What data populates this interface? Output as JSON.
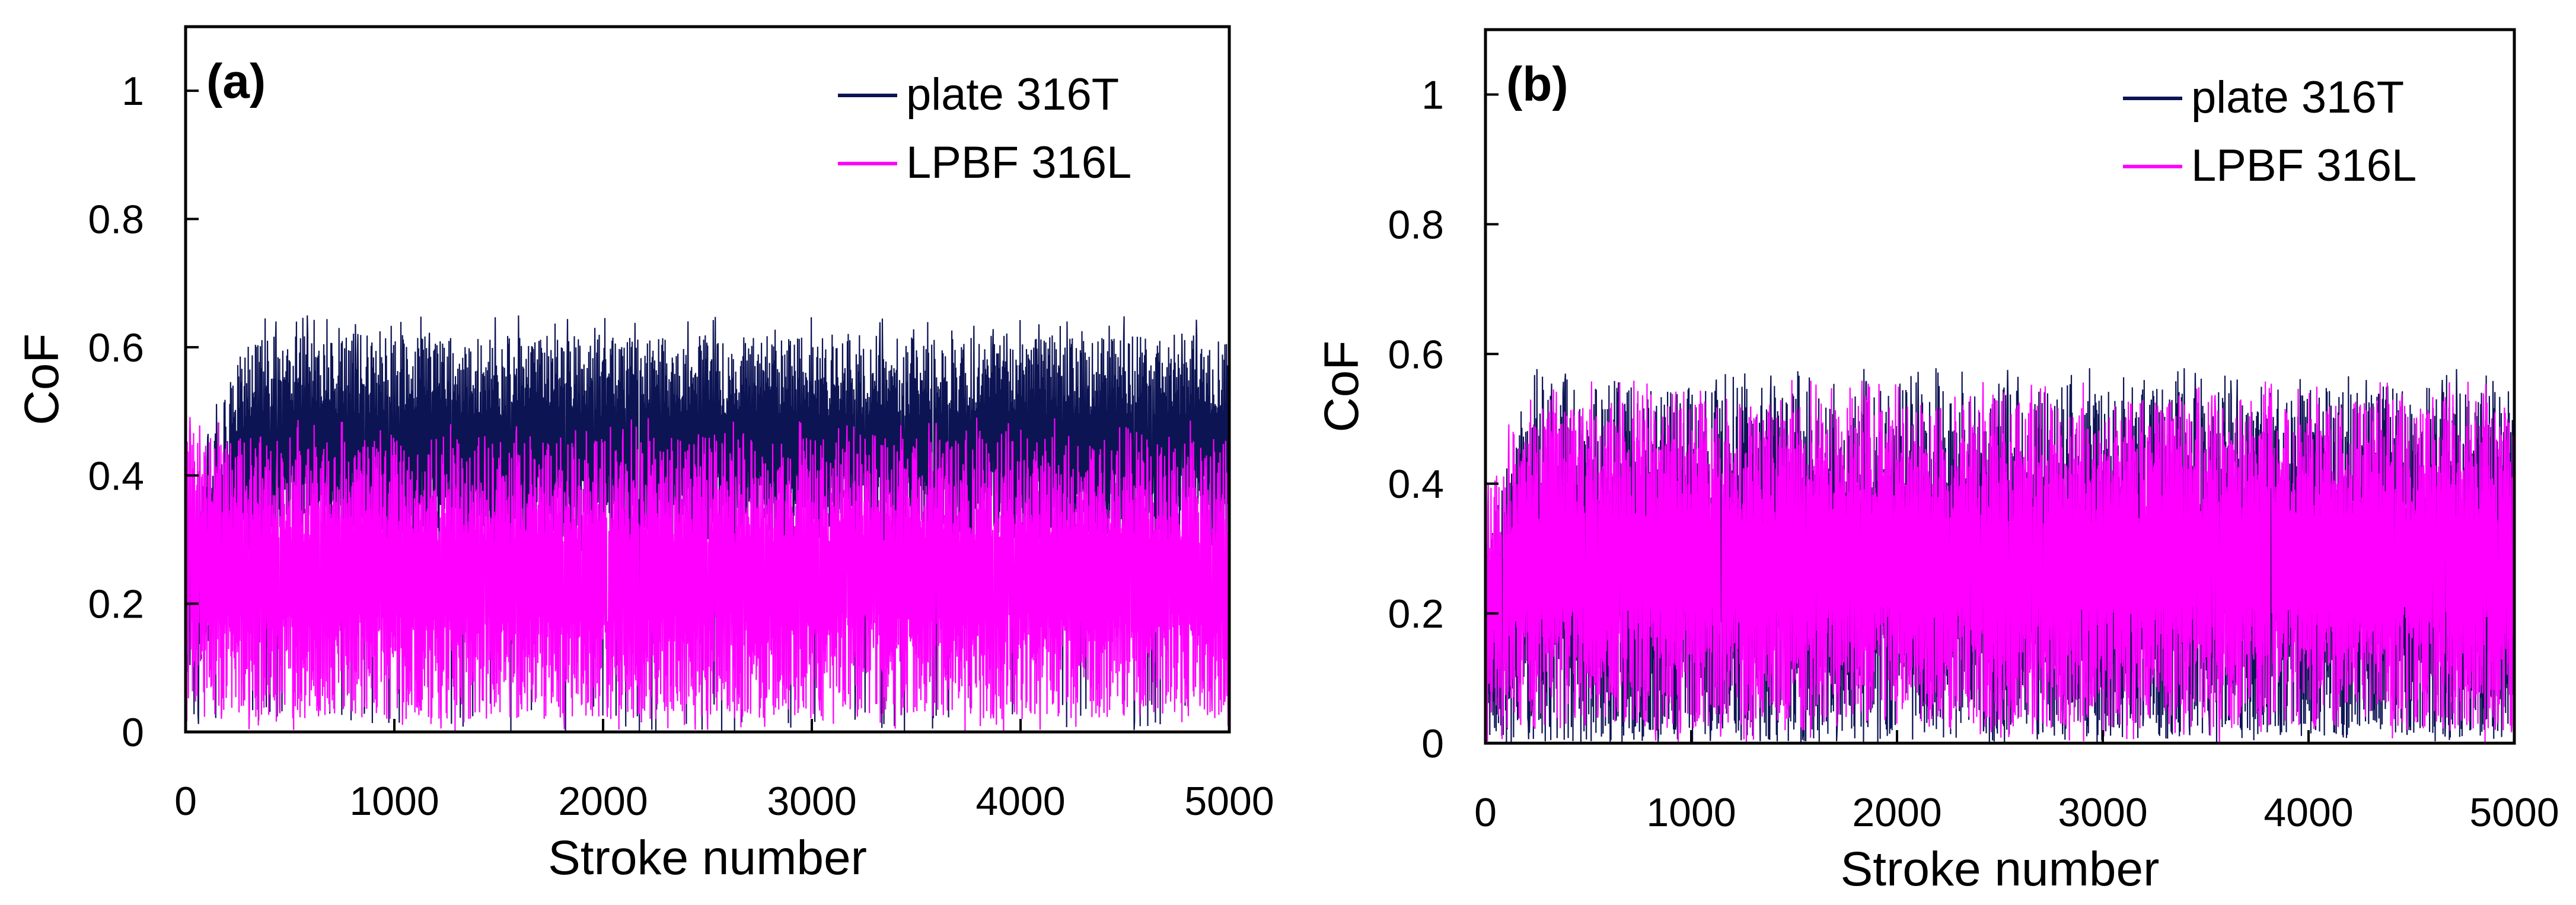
{
  "chart_data": [
    {
      "type": "line",
      "panel_label": "(a)",
      "xlabel": "Stroke number",
      "ylabel": "CoF",
      "xlim": [
        0,
        5000
      ],
      "ylim": [
        0,
        1.1
      ],
      "xticks": [
        0,
        1000,
        2000,
        3000,
        4000,
        5000
      ],
      "yticks": [
        0,
        0.2,
        0.4,
        0.6,
        0.8,
        1
      ],
      "xtick_labels": [
        "0",
        "1000",
        "2000",
        "3000",
        "4000",
        "5000"
      ],
      "ytick_labels": [
        "0",
        "0.2",
        "0.4",
        "0.6",
        "0.8",
        "1"
      ],
      "legend_position": "top-right",
      "series": [
        {
          "name": "plate 316T",
          "color": "#0d1454",
          "profile": {
            "start_x": [
              0,
              300
            ],
            "start_band": [
              0.05,
              0.35
            ],
            "steady_band": [
              0.28,
              0.62
            ],
            "steady_mean": 0.44,
            "dips_to": 0.0
          }
        },
        {
          "name": "LPBF 316L",
          "color": "#ff00ff",
          "profile": {
            "start_x": [
              0,
              100
            ],
            "start_band": [
              0.05,
              0.48
            ],
            "steady_band": [
              0.02,
              0.46
            ],
            "steady_mean": 0.24,
            "dips_to": 0.0
          }
        }
      ]
    },
    {
      "type": "line",
      "panel_label": "(b)",
      "xlabel": "Stroke number",
      "ylabel": "CoF",
      "xlim": [
        0,
        5000
      ],
      "ylim": [
        0,
        1.1
      ],
      "xticks": [
        0,
        1000,
        2000,
        3000,
        4000,
        5000
      ],
      "yticks": [
        0,
        0.2,
        0.4,
        0.6,
        0.8,
        1
      ],
      "xtick_labels": [
        "0",
        "1000",
        "2000",
        "3000",
        "4000",
        "5000"
      ],
      "ytick_labels": [
        "0",
        "0.2",
        "0.4",
        "0.6",
        "0.8",
        "1"
      ],
      "legend_position": "top-right",
      "series": [
        {
          "name": "plate 316T",
          "color": "#0d1454",
          "profile": {
            "start_x": [
              0,
              200
            ],
            "start_band": [
              0.0,
              0.3
            ],
            "steady_band": [
              0.0,
              0.55
            ],
            "steady_mean": 0.28,
            "dips_to": 0.0
          }
        },
        {
          "name": "LPBF 316L",
          "color": "#ff00ff",
          "profile": {
            "start_x": [
              0,
              200
            ],
            "start_band": [
              0.05,
              0.38
            ],
            "steady_band": [
              0.02,
              0.53
            ],
            "steady_mean": 0.27,
            "dips_to": 0.0
          }
        }
      ]
    }
  ]
}
